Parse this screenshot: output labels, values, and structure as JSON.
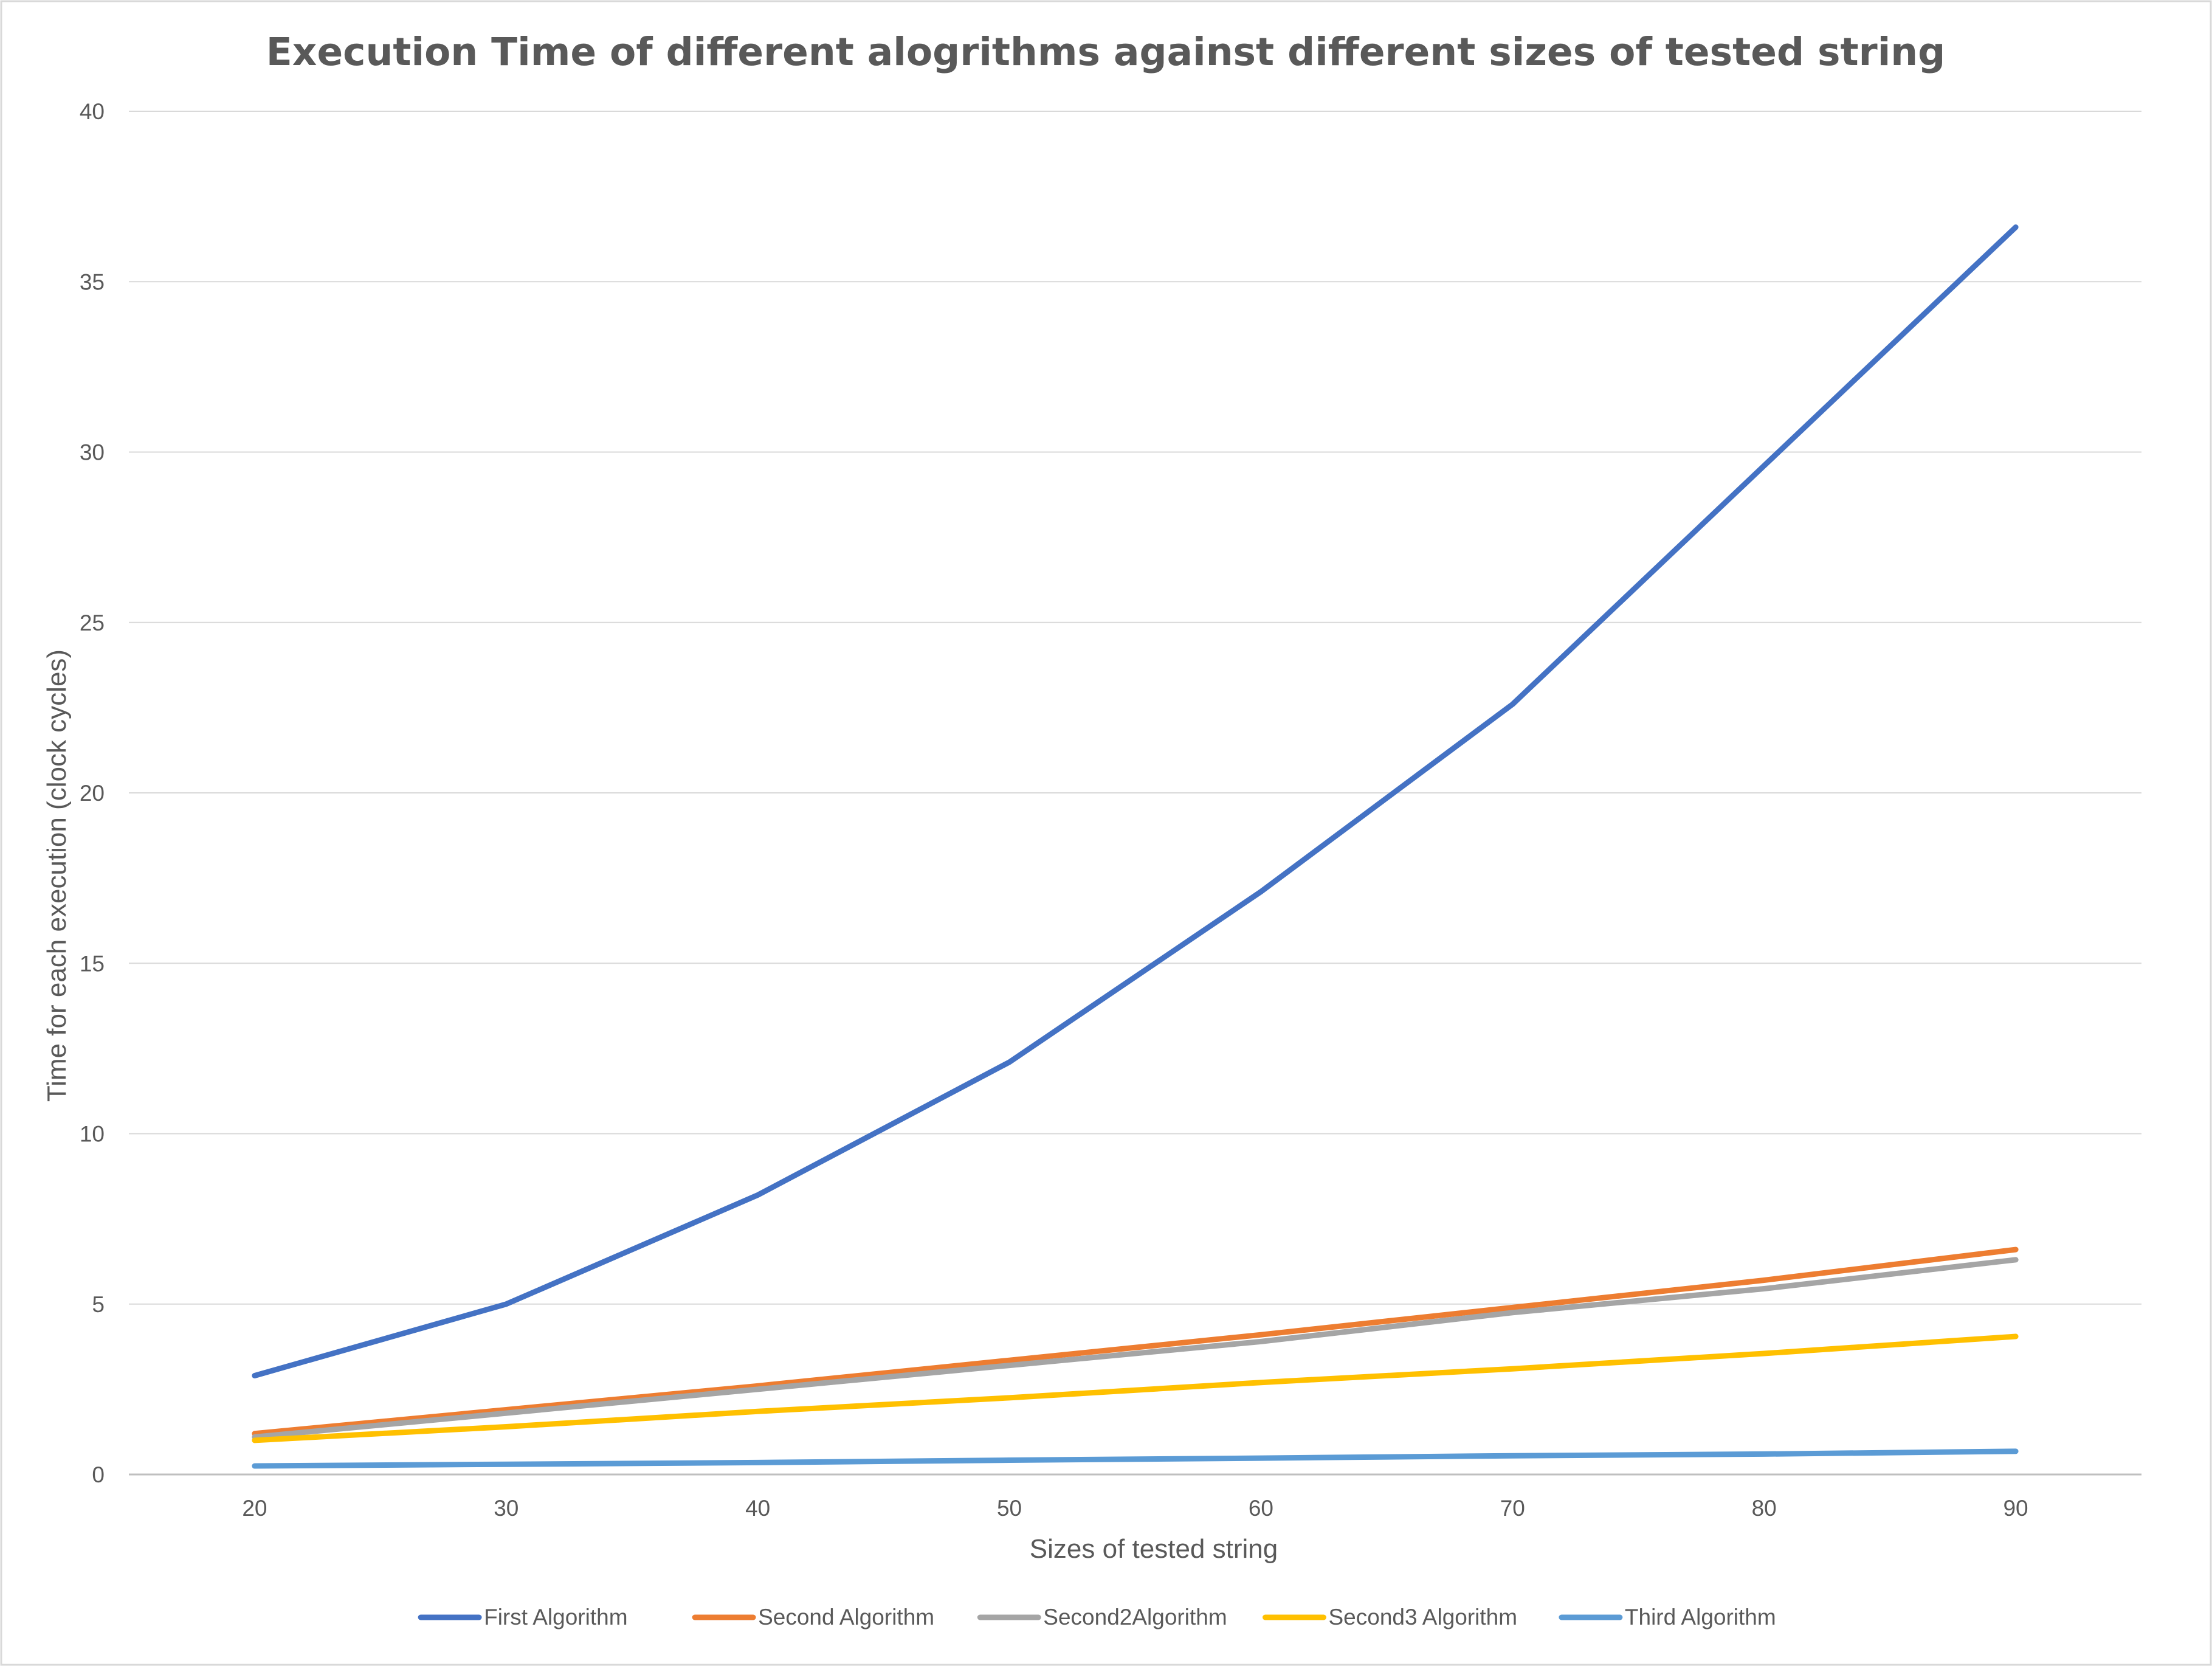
{
  "chart_data": {
    "type": "line",
    "title": "Execution Time of different alogrithms against different sizes of tested string",
    "xlabel": "Sizes of tested string",
    "ylabel": "Time for each execution (clock cycles)",
    "x": [
      20,
      30,
      40,
      50,
      60,
      70,
      80,
      90
    ],
    "ylim": [
      0,
      40
    ],
    "yticks": [
      0,
      5,
      10,
      15,
      20,
      25,
      30,
      35,
      40
    ],
    "grid": true,
    "legend_position": "bottom",
    "series": [
      {
        "name": "First Algorithm",
        "color": "#4472C4",
        "values": [
          2.9,
          5.0,
          8.2,
          12.1,
          17.1,
          22.6,
          29.6,
          36.6
        ]
      },
      {
        "name": "Second Algorithm",
        "color": "#ED7D31",
        "values": [
          1.2,
          1.9,
          2.6,
          3.35,
          4.1,
          4.9,
          5.7,
          6.6
        ]
      },
      {
        "name": "Second2Algorithm",
        "color": "#A5A5A5",
        "values": [
          1.1,
          1.8,
          2.5,
          3.2,
          3.9,
          4.75,
          5.45,
          6.3
        ]
      },
      {
        "name": "Second3 Algorithm",
        "color": "#FFC000",
        "values": [
          1.0,
          1.4,
          1.85,
          2.25,
          2.7,
          3.1,
          3.55,
          4.05
        ]
      },
      {
        "name": "Third Algorithm",
        "color": "#5B9BD5",
        "values": [
          0.25,
          0.3,
          0.35,
          0.42,
          0.48,
          0.55,
          0.6,
          0.68
        ]
      }
    ]
  }
}
